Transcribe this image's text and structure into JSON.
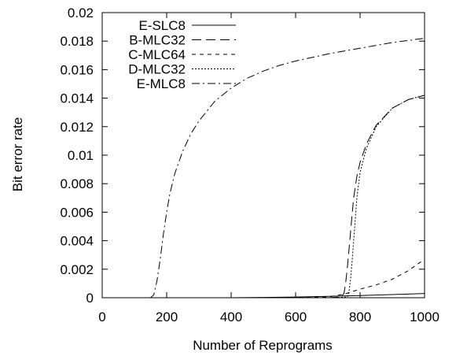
{
  "chart_data": {
    "type": "line",
    "xlabel": "Number of Reprograms",
    "ylabel": "Bit error rate",
    "xlim": [
      0,
      1000
    ],
    "ylim": [
      0,
      0.02
    ],
    "x_ticks": [
      "0",
      "200",
      "400",
      "600",
      "800",
      "1000"
    ],
    "y_ticks": [
      "0",
      "0.002",
      "0.004",
      "0.006",
      "0.008",
      "0.01",
      "0.012",
      "0.014",
      "0.016",
      "0.018",
      "0.02"
    ],
    "grid": false,
    "legend_position": "top-left",
    "series": [
      {
        "name": "E-SLC8",
        "dash": "solid",
        "x": [
          0,
          400,
          500,
          600,
          700,
          800,
          900,
          1000
        ],
        "y": [
          0,
          0,
          2e-05,
          5e-05,
          0.0001,
          0.00015,
          0.00022,
          0.0003
        ]
      },
      {
        "name": "B-MLC32",
        "dash": "long-dash",
        "x": [
          0,
          700,
          740,
          750,
          755,
          760,
          765,
          770,
          775,
          780,
          790,
          800,
          820,
          850,
          900,
          950,
          1000
        ],
        "y": [
          0,
          0,
          5e-05,
          0.0003,
          0.001,
          0.002,
          0.0032,
          0.0045,
          0.0058,
          0.007,
          0.0085,
          0.0095,
          0.0108,
          0.0121,
          0.0133,
          0.0139,
          0.0142
        ]
      },
      {
        "name": "C-MLC64",
        "dash": "short-dash",
        "x": [
          0,
          600,
          700,
          750,
          800,
          850,
          900,
          950,
          1000
        ],
        "y": [
          0,
          0,
          5e-05,
          0.00025,
          0.0006,
          0.0009,
          0.0013,
          0.0019,
          0.0027
        ]
      },
      {
        "name": "D-MLC32",
        "dash": "dotted",
        "x": [
          0,
          720,
          760,
          765,
          770,
          775,
          780,
          785,
          790,
          800,
          820,
          850,
          900,
          950,
          1000
        ],
        "y": [
          0,
          0,
          5e-05,
          0.0003,
          0.0012,
          0.0025,
          0.004,
          0.0055,
          0.007,
          0.0088,
          0.0105,
          0.012,
          0.0133,
          0.0139,
          0.0142
        ]
      },
      {
        "name": "E-MLC8",
        "dash": "dash-dot",
        "x": [
          0,
          150,
          160,
          170,
          180,
          190,
          200,
          210,
          225,
          250,
          275,
          300,
          350,
          400,
          450,
          500,
          550,
          600,
          700,
          800,
          900,
          1000
        ],
        "y": [
          0,
          0,
          0.0002,
          0.0012,
          0.0027,
          0.0045,
          0.006,
          0.0073,
          0.0087,
          0.0103,
          0.0115,
          0.0124,
          0.0138,
          0.0147,
          0.0154,
          0.0159,
          0.0163,
          0.0166,
          0.0171,
          0.0175,
          0.0179,
          0.0182
        ]
      }
    ]
  }
}
